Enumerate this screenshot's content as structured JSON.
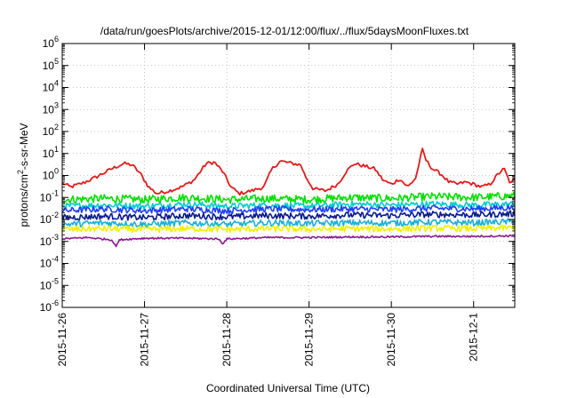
{
  "chart_data": {
    "type": "line",
    "title": "/data/run/goesPlots/archive/2015-12-01/12:00/flux/../flux/5daysMoonFluxes.txt",
    "xlabel": "Coordinated Universal Time (UTC)",
    "ylabel": {
      "base": "protons/cm",
      "sup": "2",
      "rest": "-s-sr-MeV"
    },
    "yscale": "log",
    "ylim": [
      1e-06,
      1000000.0
    ],
    "xlim": [
      0,
      5.5
    ],
    "grid": true,
    "x_tick_labels": [
      "2015-11-26",
      "2015-11-27",
      "2015-11-28",
      "2015-11-29",
      "2015-11-30",
      "2015-12-1"
    ],
    "y_ticks": [
      {
        "base": "10",
        "exp": "6"
      },
      {
        "base": "10",
        "exp": "5"
      },
      {
        "base": "10",
        "exp": "4"
      },
      {
        "base": "10",
        "exp": "3"
      },
      {
        "base": "10",
        "exp": "2"
      },
      {
        "base": "10",
        "exp": "1"
      },
      {
        "base": "10",
        "exp": "0"
      },
      {
        "base": "10",
        "exp": "-1"
      },
      {
        "base": "10",
        "exp": "-2"
      },
      {
        "base": "10",
        "exp": "-3"
      },
      {
        "base": "10",
        "exp": "-4"
      },
      {
        "base": "10",
        "exp": "-5"
      },
      {
        "base": "10",
        "exp": "-6"
      }
    ],
    "series": [
      {
        "color": "#e31a1c",
        "points": [
          [
            0.0,
            0.45
          ],
          [
            0.1,
            0.3
          ],
          [
            0.25,
            0.45
          ],
          [
            0.4,
            0.8
          ],
          [
            0.6,
            2.0
          ],
          [
            0.75,
            3.5
          ],
          [
            0.85,
            3.0
          ],
          [
            0.95,
            1.2
          ],
          [
            1.05,
            0.3
          ],
          [
            1.15,
            0.15
          ],
          [
            1.3,
            0.2
          ],
          [
            1.45,
            0.3
          ],
          [
            1.6,
            0.6
          ],
          [
            1.75,
            3.5
          ],
          [
            1.85,
            4.0
          ],
          [
            1.95,
            1.5
          ],
          [
            2.05,
            0.3
          ],
          [
            2.15,
            0.15
          ],
          [
            2.3,
            0.2
          ],
          [
            2.45,
            0.3
          ],
          [
            2.55,
            2.0
          ],
          [
            2.65,
            4.5
          ],
          [
            2.8,
            3.5
          ],
          [
            2.9,
            3.0
          ],
          [
            2.95,
            1.0
          ],
          [
            3.05,
            0.25
          ],
          [
            3.2,
            0.2
          ],
          [
            3.35,
            0.4
          ],
          [
            3.45,
            1.5
          ],
          [
            3.55,
            3.5
          ],
          [
            3.7,
            2.5
          ],
          [
            3.8,
            2.0
          ],
          [
            3.9,
            0.6
          ],
          [
            4.0,
            0.4
          ],
          [
            4.1,
            0.7
          ],
          [
            4.2,
            0.3
          ],
          [
            4.3,
            0.8
          ],
          [
            4.35,
            6.0
          ],
          [
            4.38,
            15.0
          ],
          [
            4.42,
            5.0
          ],
          [
            4.5,
            2.0
          ],
          [
            4.6,
            1.2
          ],
          [
            4.7,
            0.5
          ],
          [
            4.8,
            0.4
          ],
          [
            4.9,
            0.5
          ],
          [
            5.0,
            0.4
          ],
          [
            5.1,
            0.3
          ],
          [
            5.2,
            0.4
          ],
          [
            5.3,
            1.2
          ],
          [
            5.37,
            2.0
          ],
          [
            5.45,
            0.4
          ],
          [
            5.5,
            0.7
          ]
        ]
      },
      {
        "color": "#00e000",
        "points": [
          [
            0.0,
            0.08
          ],
          [
            0.5,
            0.09
          ],
          [
            1.0,
            0.08
          ],
          [
            1.5,
            0.1
          ],
          [
            2.0,
            0.08
          ],
          [
            2.5,
            0.09
          ],
          [
            3.0,
            0.08
          ],
          [
            3.5,
            0.1
          ],
          [
            4.0,
            0.09
          ],
          [
            4.5,
            0.11
          ],
          [
            5.0,
            0.1
          ],
          [
            5.5,
            0.12
          ]
        ]
      },
      {
        "color": "#00cccc",
        "points": [
          [
            0.0,
            0.04
          ],
          [
            0.5,
            0.045
          ],
          [
            1.0,
            0.04
          ],
          [
            1.5,
            0.05
          ],
          [
            2.0,
            0.04
          ],
          [
            2.5,
            0.045
          ],
          [
            3.0,
            0.04
          ],
          [
            3.5,
            0.05
          ],
          [
            4.0,
            0.045
          ],
          [
            4.5,
            0.05
          ],
          [
            5.0,
            0.045
          ],
          [
            5.5,
            0.05
          ]
        ]
      },
      {
        "color": "#1f3fff",
        "points": [
          [
            0.0,
            0.025
          ],
          [
            0.5,
            0.03
          ],
          [
            1.0,
            0.025
          ],
          [
            1.5,
            0.03
          ],
          [
            2.0,
            0.025
          ],
          [
            2.5,
            0.03
          ],
          [
            3.0,
            0.028
          ],
          [
            3.5,
            0.03
          ],
          [
            4.0,
            0.028
          ],
          [
            4.5,
            0.032
          ],
          [
            5.0,
            0.03
          ],
          [
            5.5,
            0.035
          ]
        ]
      },
      {
        "color": "#0a1a8c",
        "points": [
          [
            0.0,
            0.012
          ],
          [
            0.5,
            0.014
          ],
          [
            1.0,
            0.012
          ],
          [
            1.5,
            0.015
          ],
          [
            2.0,
            0.013
          ],
          [
            2.5,
            0.015
          ],
          [
            3.0,
            0.014
          ],
          [
            3.5,
            0.016
          ],
          [
            4.0,
            0.015
          ],
          [
            4.5,
            0.017
          ],
          [
            5.0,
            0.016
          ],
          [
            5.5,
            0.018
          ]
        ]
      },
      {
        "color": "#1ab0d8",
        "points": [
          [
            0.0,
            0.006
          ],
          [
            0.5,
            0.007
          ],
          [
            1.0,
            0.006
          ],
          [
            1.5,
            0.007
          ],
          [
            2.0,
            0.006
          ],
          [
            2.5,
            0.007
          ],
          [
            3.0,
            0.0065
          ],
          [
            3.5,
            0.007
          ],
          [
            4.0,
            0.0068
          ],
          [
            4.5,
            0.0075
          ],
          [
            5.0,
            0.007
          ],
          [
            5.5,
            0.008
          ]
        ]
      },
      {
        "color": "#f0f000",
        "points": [
          [
            0.0,
            0.0035
          ],
          [
            0.5,
            0.0038
          ],
          [
            1.0,
            0.0035
          ],
          [
            1.5,
            0.0038
          ],
          [
            2.0,
            0.0035
          ],
          [
            2.5,
            0.0038
          ],
          [
            3.0,
            0.0036
          ],
          [
            3.5,
            0.0038
          ],
          [
            4.0,
            0.0037
          ],
          [
            4.5,
            0.004
          ],
          [
            5.0,
            0.0038
          ],
          [
            5.5,
            0.0042
          ]
        ]
      },
      {
        "color": "#8b1a8b",
        "points": [
          [
            0.0,
            0.0013
          ],
          [
            0.3,
            0.0015
          ],
          [
            0.6,
            0.0012
          ],
          [
            0.65,
            0.0006
          ],
          [
            0.7,
            0.0012
          ],
          [
            1.0,
            0.0014
          ],
          [
            1.5,
            0.0014
          ],
          [
            1.9,
            0.0013
          ],
          [
            1.95,
            0.0008
          ],
          [
            2.0,
            0.0013
          ],
          [
            2.5,
            0.0015
          ],
          [
            3.0,
            0.0015
          ],
          [
            3.5,
            0.0016
          ],
          [
            4.0,
            0.0016
          ],
          [
            4.5,
            0.0017
          ],
          [
            5.0,
            0.0017
          ],
          [
            5.5,
            0.0018
          ]
        ]
      }
    ]
  }
}
